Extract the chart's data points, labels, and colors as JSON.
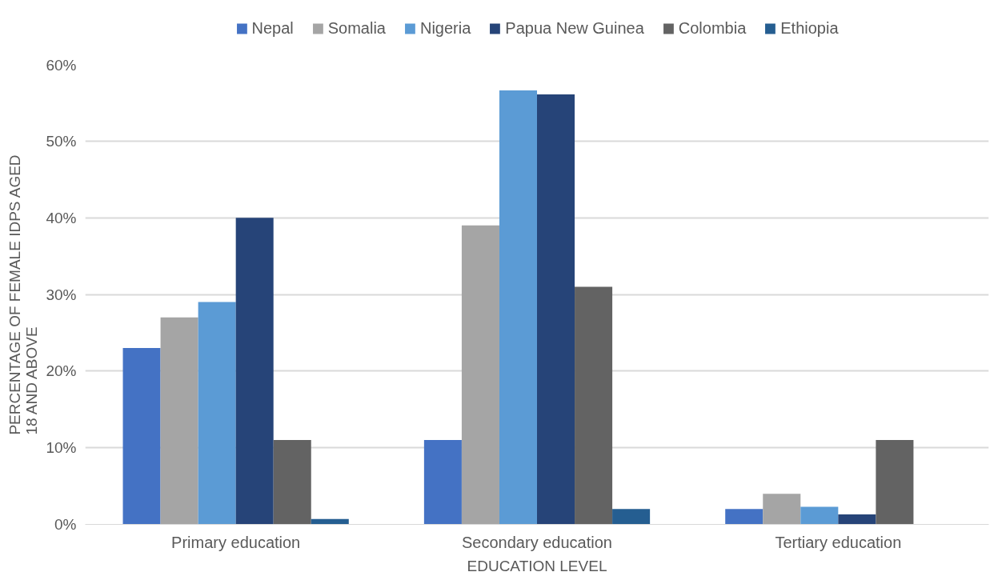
{
  "chart_data": {
    "type": "bar",
    "xlabel": "EDUCATION LEVEL",
    "ylabel": "PERCENTAGE OF FEMALE IDPS AGED 18 AND ABOVE",
    "categories": [
      "Primary education",
      "Secondary education",
      "Tertiary education"
    ],
    "series": [
      {
        "name": "Nepal",
        "color": "#4472c4",
        "values": [
          23,
          11,
          2
        ]
      },
      {
        "name": "Somalia",
        "color": "#a5a5a5",
        "values": [
          27,
          39,
          4
        ]
      },
      {
        "name": "Nigeria",
        "color": "#5b9bd5",
        "values": [
          29,
          56.6,
          2.3
        ]
      },
      {
        "name": "Papua New Guinea",
        "color": "#264478",
        "values": [
          40,
          56.1,
          1.3
        ]
      },
      {
        "name": "Colombia",
        "color": "#636363",
        "values": [
          11,
          31,
          11
        ]
      },
      {
        "name": "Ethiopia",
        "color": "#255e91",
        "values": [
          0.7,
          2,
          0
        ]
      }
    ],
    "ylim": [
      0,
      60
    ],
    "yticks": [
      {
        "value": 0,
        "label": "0%"
      },
      {
        "value": 10,
        "label": "10%"
      },
      {
        "value": 20,
        "label": "20%"
      },
      {
        "value": 30,
        "label": "30%"
      },
      {
        "value": 40,
        "label": "40%"
      },
      {
        "value": 50,
        "label": "50%"
      },
      {
        "value": 60,
        "label": "60%"
      }
    ],
    "grid": "y",
    "legend": "top"
  }
}
